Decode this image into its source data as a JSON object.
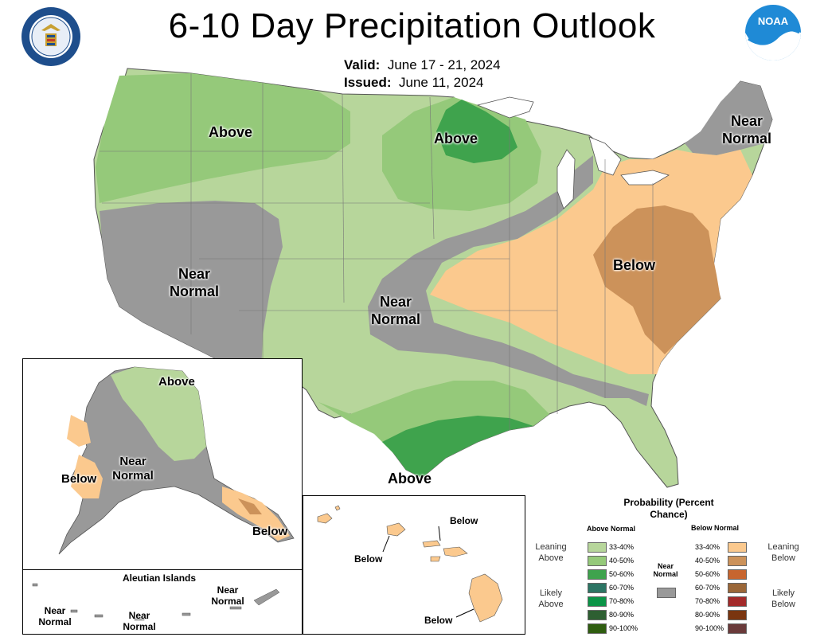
{
  "header": {
    "title": "6-10 Day Precipitation Outlook",
    "valid_label": "Valid:",
    "valid_value": "June 17 - 21, 2024",
    "issued_label": "Issued:",
    "issued_value": "June 11, 2024"
  },
  "logos": {
    "left": "department-of-commerce-seal",
    "right": "noaa-logo",
    "noaa_text": "NOAA"
  },
  "colors": {
    "above_33_40": "#b7d69b",
    "above_40_50": "#95c97a",
    "above_50_60": "#3fa34d",
    "above_60_70": "#2c7564",
    "above_70_80": "#0b9447",
    "above_80_90": "#2e5f32",
    "above_90_100": "#2f5d10",
    "near_normal": "#999999",
    "below_33_40": "#fbc98e",
    "below_40_50": "#cc925a",
    "below_50_60": "#c7652f",
    "below_60_70": "#9b6738",
    "below_70_80": "#a32a2a",
    "below_80_90": "#7a3510",
    "below_90_100": "#6a3a3a"
  },
  "map_labels": {
    "above_nw": "Above",
    "above_mn": "Above",
    "near_normal_ne": "Near Normal",
    "near_normal_west": "Near Normal",
    "near_normal_central": "Near Normal",
    "below_east": "Below",
    "above_tx": "Above",
    "ak_above": "Above",
    "ak_near_normal": "Near Normal",
    "ak_below_west": "Below",
    "ak_below_se": "Below",
    "aleutian_title": "Aleutian Islands",
    "aleutian_nn1": "Near Normal",
    "aleutian_nn2": "Near Normal",
    "aleutian_nn3": "Near Normal",
    "hi_below1": "Below",
    "hi_below2": "Below",
    "hi_below3": "Below"
  },
  "legend": {
    "title": "Probability (Percent Chance)",
    "above_header": "Above Normal",
    "below_header": "Below Normal",
    "near_normal": "Near Normal",
    "leaning_above": "Leaning Above",
    "likely_above": "Likely Above",
    "leaning_below": "Leaning Below",
    "likely_below": "Likely Below",
    "ranges": [
      "33-40%",
      "40-50%",
      "50-60%",
      "60-70%",
      "70-80%",
      "80-90%",
      "90-100%"
    ]
  }
}
